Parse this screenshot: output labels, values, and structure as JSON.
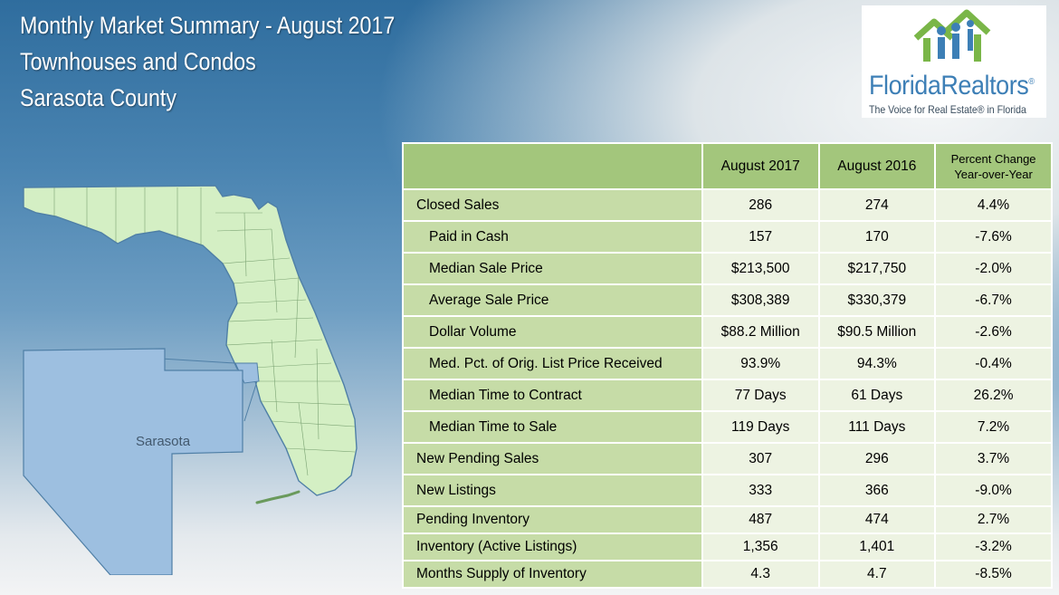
{
  "titles": {
    "line1": "Monthly Market Summary - August 2017",
    "line2": "Townhouses and Condos",
    "line3": "Sarasota County"
  },
  "logo": {
    "name": "FloridaRealtors",
    "registered": "®",
    "tagline": "The Voice for Real Estate® in Florida",
    "colors": {
      "green": "#7ab648",
      "blue": "#3d7fb6"
    }
  },
  "map": {
    "county_label": "Sarasota",
    "colors": {
      "state_fill": "#d4efc4",
      "county_fill": "#9dbfe0",
      "border": "#4f7fa6"
    }
  },
  "table": {
    "headers": {
      "col1": "August 2017",
      "col2": "August 2016",
      "col3_line1": "Percent Change",
      "col3_line2": "Year-over-Year"
    },
    "rows": [
      {
        "label": "Closed Sales",
        "aug2017": "286",
        "aug2016": "274",
        "pct": "4.4%"
      },
      {
        "label": "Paid in Cash",
        "aug2017": "157",
        "aug2016": "170",
        "pct": "-7.6%"
      },
      {
        "label": "Median Sale Price",
        "aug2017": "$213,500",
        "aug2016": "$217,750",
        "pct": "-2.0%"
      },
      {
        "label": "Average Sale Price",
        "aug2017": "$308,389",
        "aug2016": "$330,379",
        "pct": "-6.7%"
      },
      {
        "label": "Dollar Volume",
        "aug2017": "$88.2 Million",
        "aug2016": "$90.5 Million",
        "pct": "-2.6%"
      },
      {
        "label": "Med. Pct. of Orig. List Price Received",
        "aug2017": "93.9%",
        "aug2016": "94.3%",
        "pct": "-0.4%"
      },
      {
        "label": "Median Time to Contract",
        "aug2017": "77 Days",
        "aug2016": "61 Days",
        "pct": "26.2%"
      },
      {
        "label": "Median Time to Sale",
        "aug2017": "119 Days",
        "aug2016": "111 Days",
        "pct": "7.2%"
      },
      {
        "label": "New Pending Sales",
        "aug2017": "307",
        "aug2016": "296",
        "pct": "3.7%"
      },
      {
        "label": "New Listings",
        "aug2017": "333",
        "aug2016": "366",
        "pct": "-9.0%"
      },
      {
        "label": "Pending Inventory",
        "aug2017": "487",
        "aug2016": "474",
        "pct": "2.7%"
      },
      {
        "label": "Inventory (Active Listings)",
        "aug2017": "1,356",
        "aug2016": "1,401",
        "pct": "-3.2%"
      },
      {
        "label": "Months Supply of Inventory",
        "aug2017": "4.3",
        "aug2016": "4.7",
        "pct": "-8.5%"
      }
    ]
  }
}
